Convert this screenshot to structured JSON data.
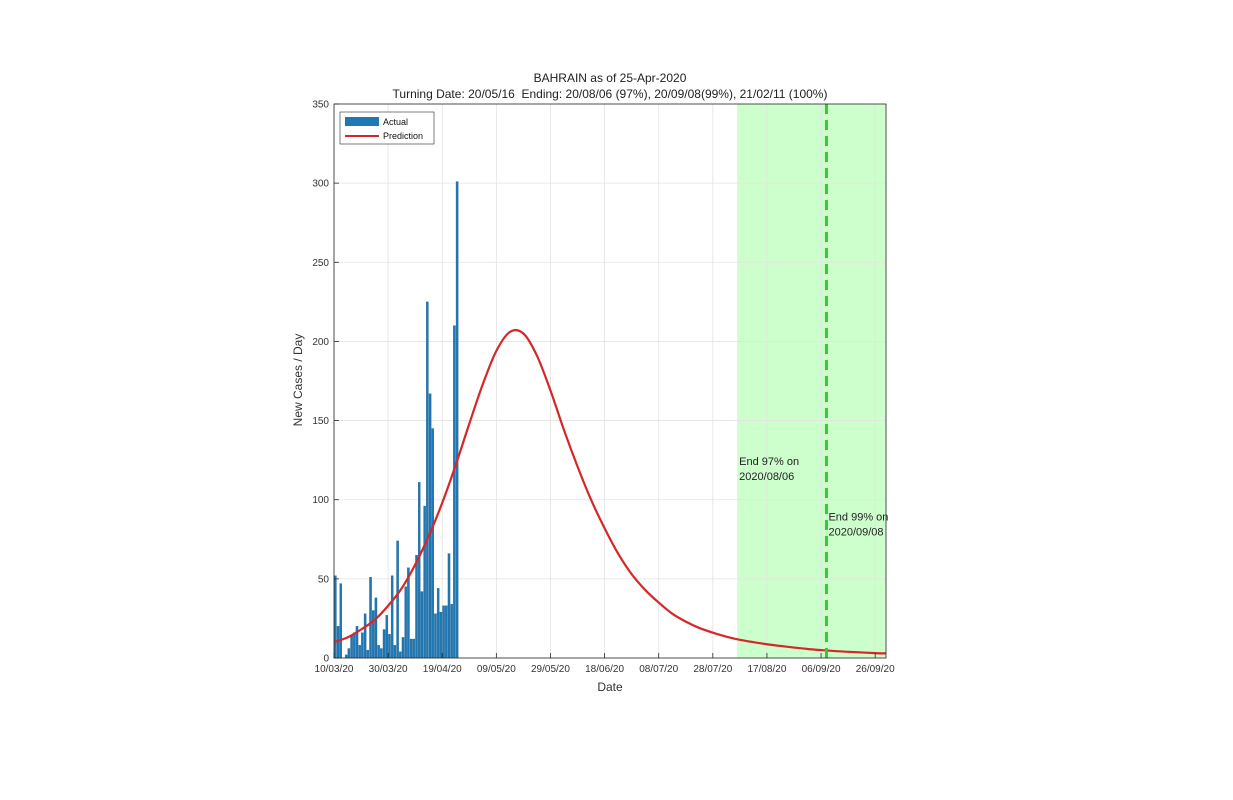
{
  "chart_data": {
    "type": "bar",
    "title": "BAHRAIN as of 25-Apr-2020",
    "subtitle": "Turning Date: 20/05/16  Ending: 20/08/06 (97%), 20/09/08(99%), 21/02/11 (100%)",
    "xlabel": "Date",
    "ylabel": "New Cases / Day",
    "xlim": [
      "2020-03-10",
      "2020-09-30"
    ],
    "ylim": [
      0,
      350
    ],
    "grid": true,
    "legend_position": "top-left",
    "x_tick_labels": [
      "10/03/20",
      "30/03/20",
      "19/04/20",
      "09/05/20",
      "29/05/20",
      "18/06/20",
      "08/07/20",
      "28/07/20",
      "17/08/20",
      "06/09/20",
      "26/09/20"
    ],
    "x_tick_dates": [
      "2020-03-10",
      "2020-03-30",
      "2020-04-19",
      "2020-05-09",
      "2020-05-29",
      "2020-06-18",
      "2020-07-08",
      "2020-07-28",
      "2020-08-17",
      "2020-09-06",
      "2020-09-26"
    ],
    "y_ticks": [
      0,
      50,
      100,
      150,
      200,
      250,
      300,
      350
    ],
    "series": [
      {
        "name": "Actual",
        "type": "bar",
        "color": "#1f77b4",
        "x": [
          "2020-03-10",
          "2020-03-11",
          "2020-03-12",
          "2020-03-13",
          "2020-03-14",
          "2020-03-15",
          "2020-03-16",
          "2020-03-17",
          "2020-03-18",
          "2020-03-19",
          "2020-03-20",
          "2020-03-21",
          "2020-03-22",
          "2020-03-23",
          "2020-03-24",
          "2020-03-25",
          "2020-03-26",
          "2020-03-27",
          "2020-03-28",
          "2020-03-29",
          "2020-03-30",
          "2020-03-31",
          "2020-04-01",
          "2020-04-02",
          "2020-04-03",
          "2020-04-04",
          "2020-04-05",
          "2020-04-06",
          "2020-04-07",
          "2020-04-08",
          "2020-04-09",
          "2020-04-10",
          "2020-04-11",
          "2020-04-12",
          "2020-04-13",
          "2020-04-14",
          "2020-04-15",
          "2020-04-16",
          "2020-04-17",
          "2020-04-18",
          "2020-04-19",
          "2020-04-20",
          "2020-04-21",
          "2020-04-22",
          "2020-04-23",
          "2020-04-24",
          "2020-04-25"
        ],
        "values": [
          52,
          20,
          47,
          0,
          2,
          6,
          14,
          16,
          20,
          8,
          16,
          28,
          5,
          51,
          30,
          38,
          8,
          6,
          18,
          27,
          15,
          52,
          8,
          74,
          4,
          13,
          45,
          57,
          12,
          12,
          65,
          111,
          42,
          96,
          225,
          167,
          145,
          28,
          44,
          29,
          33,
          33,
          66,
          34,
          210,
          301,
          0
        ]
      },
      {
        "name": "Prediction",
        "type": "line",
        "color": "#d62728",
        "x": [
          "2020-03-10",
          "2020-03-15",
          "2020-03-20",
          "2020-03-25",
          "2020-03-30",
          "2020-04-04",
          "2020-04-09",
          "2020-04-14",
          "2020-04-19",
          "2020-04-24",
          "2020-04-29",
          "2020-05-04",
          "2020-05-09",
          "2020-05-14",
          "2020-05-19",
          "2020-05-24",
          "2020-05-29",
          "2020-06-03",
          "2020-06-08",
          "2020-06-13",
          "2020-06-18",
          "2020-06-23",
          "2020-06-28",
          "2020-07-03",
          "2020-07-08",
          "2020-07-13",
          "2020-07-18",
          "2020-07-23",
          "2020-07-28",
          "2020-08-02",
          "2020-08-07",
          "2020-08-12",
          "2020-08-17",
          "2020-08-22",
          "2020-08-27",
          "2020-09-01",
          "2020-09-06",
          "2020-09-11",
          "2020-09-16",
          "2020-09-21",
          "2020-09-26",
          "2020-09-30"
        ],
        "values": [
          10,
          13,
          18,
          24,
          33,
          44,
          59,
          77,
          98,
          122,
          148,
          173,
          194,
          206,
          205,
          191,
          169,
          144,
          121,
          100,
          82,
          66,
          53,
          43,
          35,
          28,
          23,
          19,
          16,
          13.5,
          11.5,
          10,
          8.7,
          7.6,
          6.6,
          5.7,
          5,
          4.4,
          3.9,
          3.5,
          3.1,
          2.9
        ]
      }
    ],
    "shaded_regions": [
      {
        "from": "2020-08-06",
        "to": "2020-09-30",
        "color": "#ccffcc"
      }
    ],
    "vertical_lines": [
      {
        "x": "2020-09-08",
        "color": "#33cc33",
        "style": "dashed"
      }
    ],
    "annotations": [
      {
        "x": "2020-08-06",
        "y": 122,
        "text": [
          "End 97% on",
          "2020/08/06"
        ]
      },
      {
        "x": "2020-09-08",
        "y": 87,
        "text": [
          "End 99% on",
          "2020/09/08"
        ]
      }
    ]
  }
}
